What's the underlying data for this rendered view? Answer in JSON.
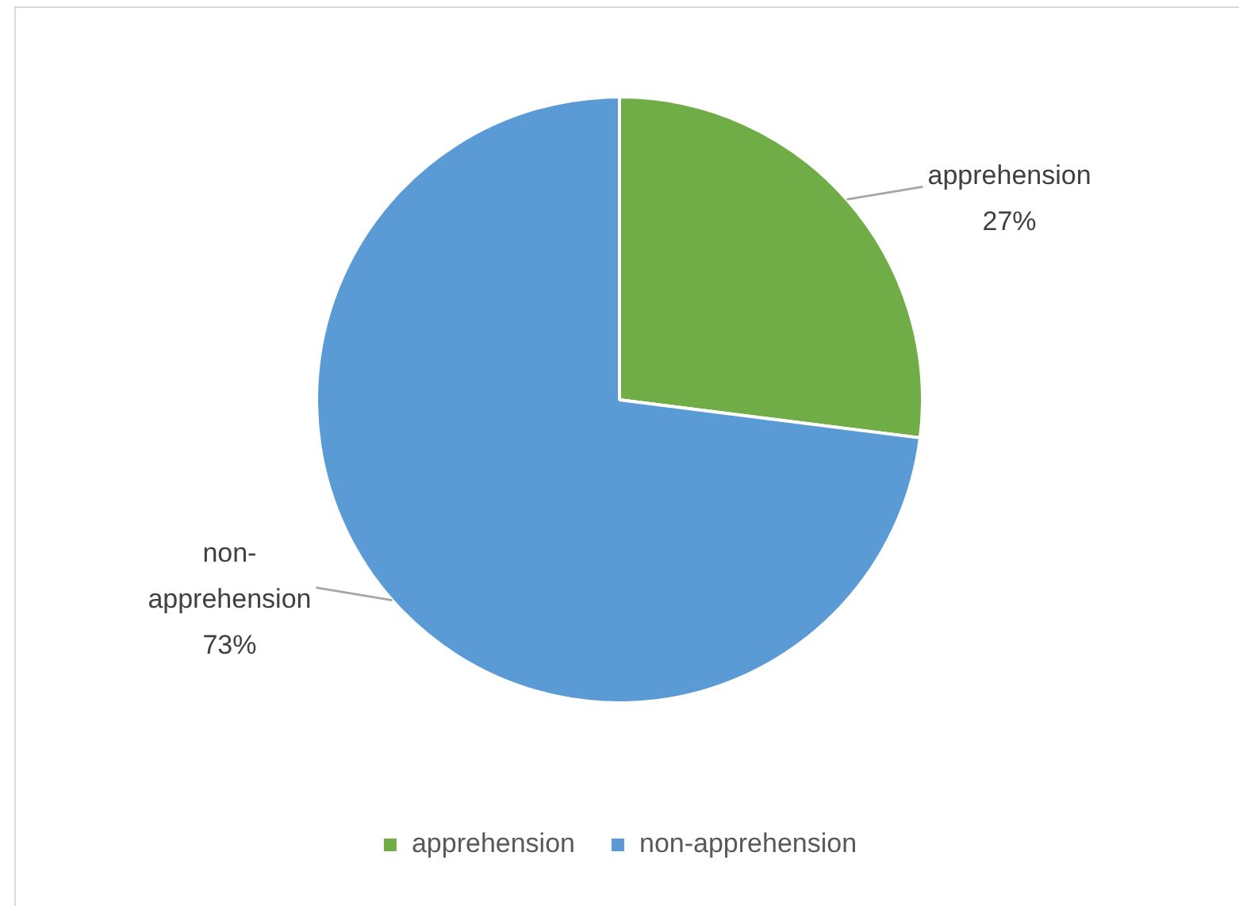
{
  "chart_data": {
    "type": "pie",
    "categories": [
      "apprehension",
      "non-apprehension"
    ],
    "values": [
      27,
      73
    ],
    "colors": [
      "#70ad47",
      "#5b9bd5"
    ],
    "value_labels": [
      "27%",
      "73%"
    ],
    "legend": "bottom"
  }
}
